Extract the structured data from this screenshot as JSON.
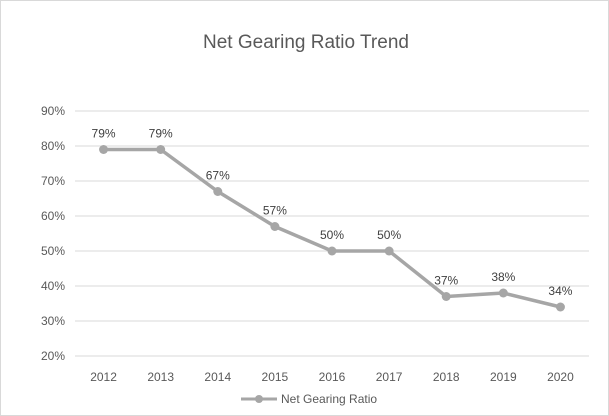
{
  "chart_data": {
    "type": "line",
    "title": "Net Gearing Ratio Trend",
    "xlabel": "",
    "ylabel": "",
    "categories": [
      "2012",
      "2013",
      "2014",
      "2015",
      "2016",
      "2017",
      "2018",
      "2019",
      "2020"
    ],
    "series": [
      {
        "name": "Net Gearing Ratio",
        "values": [
          0.79,
          0.79,
          0.67,
          0.57,
          0.5,
          0.5,
          0.37,
          0.38,
          0.34
        ],
        "data_labels": [
          "79%",
          "79%",
          "67%",
          "57%",
          "50%",
          "50%",
          "37%",
          "38%",
          "34%"
        ],
        "color": "#a6a6a6"
      }
    ],
    "ylim": [
      0.2,
      0.9
    ],
    "yticks": [
      0.2,
      0.3,
      0.4,
      0.5,
      0.6,
      0.7,
      0.8,
      0.9
    ],
    "ytick_labels": [
      "20%",
      "30%",
      "40%",
      "50%",
      "60%",
      "70%",
      "80%",
      "90%"
    ],
    "grid": true,
    "legend": "bottom"
  }
}
